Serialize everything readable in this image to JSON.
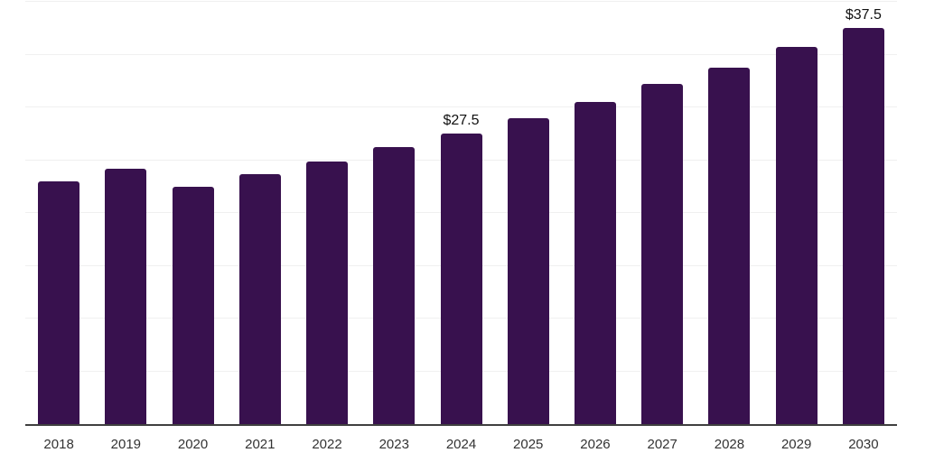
{
  "chart_data": {
    "type": "bar",
    "title": "",
    "xlabel": "",
    "ylabel": "",
    "categories": [
      "2018",
      "2019",
      "2020",
      "2021",
      "2022",
      "2023",
      "2024",
      "2025",
      "2026",
      "2027",
      "2028",
      "2029",
      "2030"
    ],
    "values": [
      23.0,
      24.2,
      22.5,
      23.7,
      24.9,
      26.2,
      27.5,
      29.0,
      30.5,
      32.2,
      33.8,
      35.7,
      37.5
    ],
    "data_labels": {
      "2024": "$27.5",
      "2030": "$37.5"
    },
    "ylim": [
      0,
      40
    ],
    "gridline_step": 5,
    "grid": true,
    "y_tick_labels_visible": false,
    "legend": "none",
    "colors": {
      "bar": "#38114E",
      "axis_line": "#3F3F3F",
      "gridline": "#F0F0F0",
      "value_label": "#111111",
      "x_tick_label": "#333333",
      "background": "#FFFFFF"
    }
  }
}
